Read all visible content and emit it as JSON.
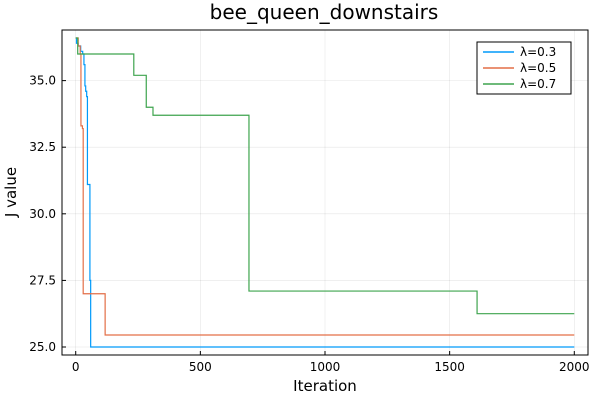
{
  "chart_data": {
    "type": "line",
    "title": "bee_queen_downstairs",
    "xlabel": "Iteration",
    "ylabel": "J value",
    "xlim": [
      -55,
      2055
    ],
    "ylim": [
      24.7,
      36.9
    ],
    "xticks": [
      0,
      500,
      1000,
      1500,
      2000
    ],
    "xtick_labels": [
      "0",
      "500",
      "1000",
      "1500",
      "2000"
    ],
    "yticks": [
      25.0,
      27.5,
      30.0,
      32.5,
      35.0
    ],
    "ytick_labels": [
      "25.0",
      "27.5",
      "30.0",
      "32.5",
      "35.0"
    ],
    "grid": true,
    "legend_position": "top-right",
    "step": true,
    "series": [
      {
        "name": "λ=0.3",
        "color": "#009AFA",
        "points": [
          [
            0,
            36.6
          ],
          [
            3,
            36.4
          ],
          [
            10,
            36.3
          ],
          [
            20,
            36.1
          ],
          [
            28,
            36.0
          ],
          [
            33,
            35.6
          ],
          [
            37,
            34.8
          ],
          [
            40,
            34.6
          ],
          [
            44,
            34.4
          ],
          [
            47,
            31.1
          ],
          [
            54,
            31.1
          ],
          [
            57,
            27.5
          ],
          [
            60,
            25.0
          ],
          [
            2000,
            25.0
          ]
        ]
      },
      {
        "name": "λ=0.5",
        "color": "#E36F47",
        "points": [
          [
            0,
            36.6
          ],
          [
            10,
            36.3
          ],
          [
            18,
            36.0
          ],
          [
            21,
            33.3
          ],
          [
            27,
            33.2
          ],
          [
            30,
            27.0
          ],
          [
            115,
            27.0
          ],
          [
            118,
            25.45
          ],
          [
            2000,
            25.45
          ]
        ]
      },
      {
        "name": "λ=0.7",
        "color": "#3EA44E",
        "points": [
          [
            0,
            36.6
          ],
          [
            8,
            36.0
          ],
          [
            228,
            36.0
          ],
          [
            233,
            35.2
          ],
          [
            278,
            35.2
          ],
          [
            283,
            34.0
          ],
          [
            305,
            34.0
          ],
          [
            310,
            33.7
          ],
          [
            690,
            33.7
          ],
          [
            695,
            27.1
          ],
          [
            1605,
            27.1
          ],
          [
            1610,
            26.25
          ],
          [
            2000,
            26.25
          ]
        ]
      }
    ]
  }
}
